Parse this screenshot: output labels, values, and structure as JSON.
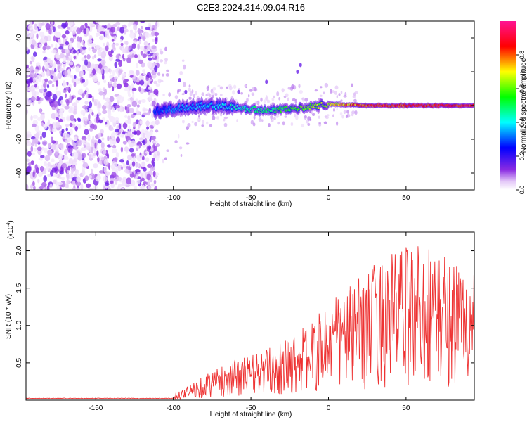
{
  "title": "C2E3.2024.314.09.04.R16",
  "colors": {
    "snr_line": "#ee3333",
    "colorbar": [
      "#ffffff",
      "#8a2be2",
      "#0000ff",
      "#00ffff",
      "#00ff00",
      "#ffff00",
      "#ff0000",
      "#ff1493"
    ]
  },
  "chart_data": [
    {
      "type": "heatmap",
      "name": "spectrogram",
      "xlabel": "Height of straight line (km)",
      "ylabel": "Frequency (Hz)",
      "xlim": [
        -195,
        94
      ],
      "ylim": [
        -50,
        50
      ],
      "xticks": [
        -150,
        -100,
        -50,
        0,
        50
      ],
      "yticks": [
        -40,
        -20,
        0,
        20,
        40
      ],
      "colorbar": {
        "label": "Normalized spectral amplitude",
        "range": [
          0,
          1
        ],
        "ticks": [
          "0.0",
          "0.2",
          "0.4",
          "0.6",
          "0.8"
        ]
      },
      "ridge": {
        "description_points_x": [
          -110,
          -100,
          -80,
          -60,
          -40,
          -20,
          0,
          20,
          50,
          94
        ],
        "center_freq": [
          -3,
          -2,
          0,
          -1,
          -3,
          -2,
          1,
          0,
          0,
          0
        ],
        "amplitude": [
          0.3,
          0.35,
          0.4,
          0.45,
          0.5,
          0.6,
          0.7,
          0.85,
          0.9,
          0.9
        ]
      }
    },
    {
      "type": "line",
      "name": "snr",
      "xlabel": "Height of straight line (km)",
      "ylabel": "SNR (10 * v/v)",
      "yscale_label": "(x10",
      "yscale_exp": "4",
      "xlim": [
        -195,
        94
      ],
      "ylim": [
        0,
        2.25
      ],
      "xticks": [
        -150,
        -100,
        -50,
        0,
        50
      ],
      "yticks": [
        "0.5",
        "1.0",
        "1.5",
        "2.0"
      ],
      "envelope": {
        "x": [
          -195,
          -105,
          -100,
          -90,
          -80,
          -70,
          -60,
          -50,
          -40,
          -30,
          -20,
          -10,
          0,
          10,
          20,
          30,
          40,
          50,
          60,
          70,
          80,
          94
        ],
        "peak": [
          0.02,
          0.03,
          0.08,
          0.2,
          0.35,
          0.45,
          0.55,
          0.62,
          0.68,
          0.78,
          0.95,
          1.05,
          1.35,
          1.5,
          1.65,
          1.85,
          2.0,
          2.05,
          2.2,
          2.05,
          1.95,
          1.7
        ]
      }
    }
  ]
}
